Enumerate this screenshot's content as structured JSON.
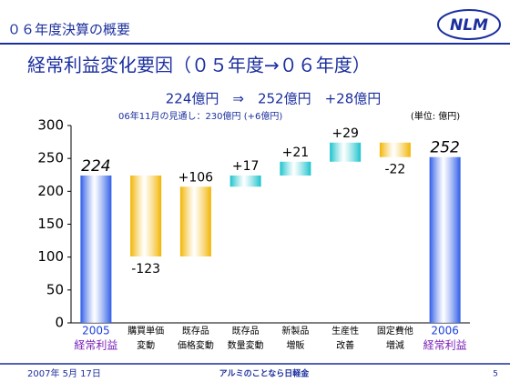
{
  "header": {
    "title": "０６年度決算の概要",
    "logo": "NLM"
  },
  "chart_data": {
    "type": "waterfall",
    "title": "経常利益変化要因（０５年度→０６年度）",
    "subtitle": "224億円　⇒　252億円　+28億円",
    "annotation": "06年11月の見通し：230億円 (+6億円)",
    "unit": "(単位: 億円)",
    "categories": [
      [
        "2005",
        "経常利益"
      ],
      [
        "購買単価",
        "変動"
      ],
      [
        "既存品",
        "価格変動"
      ],
      [
        "既存品",
        "数量変動"
      ],
      [
        "新製品",
        "増販"
      ],
      [
        "生産性",
        "改善"
      ],
      [
        "固定費他",
        "増減"
      ],
      [
        "2006",
        "経常利益"
      ]
    ],
    "values": [
      224,
      -123,
      106,
      17,
      21,
      29,
      -22,
      252
    ],
    "value_labels": [
      "224",
      "-123",
      "+106",
      "+17",
      "+21",
      "+29",
      "-22",
      "252"
    ],
    "totals": [
      true,
      false,
      false,
      false,
      false,
      false,
      false,
      true
    ],
    "colors": [
      "#2e5ce8",
      "#f2b400",
      "#f2b400",
      "#19c2cc",
      "#19c2cc",
      "#19c2cc",
      "#f2b400",
      "#2e5ce8"
    ],
    "ylim": [
      0,
      300
    ],
    "yticks": [
      0,
      50,
      100,
      150,
      200,
      250,
      300
    ]
  },
  "footer": {
    "date": "2007年 5月 17日",
    "slogan": "アルミのことなら日軽金",
    "page": "5"
  }
}
